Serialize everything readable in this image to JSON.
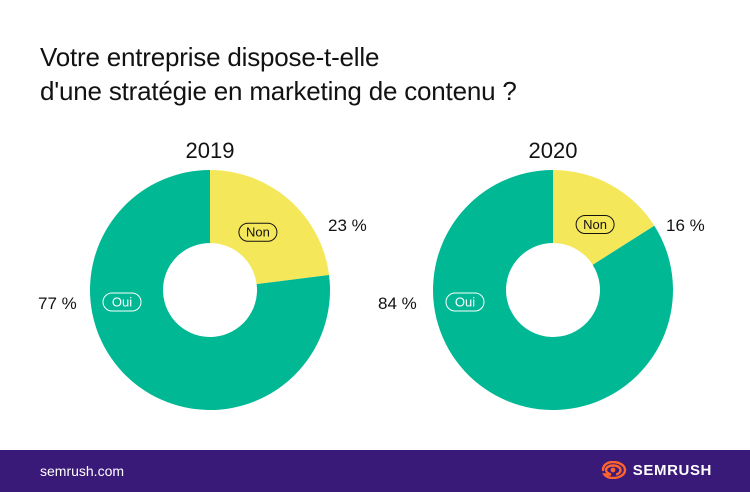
{
  "title_lines": [
    "Votre entreprise dispose-t-elle",
    "d'une stratégie en marketing de contenu ?"
  ],
  "chart_data": [
    {
      "type": "pie",
      "subtitle": "2019",
      "categories": [
        "Non",
        "Oui"
      ],
      "values": [
        23,
        77
      ],
      "value_labels": [
        "23 %",
        "77 %"
      ]
    },
    {
      "type": "pie",
      "subtitle": "2020",
      "categories": [
        "Non",
        "Oui"
      ],
      "values": [
        16,
        84
      ],
      "value_labels": [
        "16 %",
        "84 %"
      ]
    }
  ],
  "colors": {
    "non": "#f5e75a",
    "oui": "#00b894",
    "footer_bg": "#3a1a78",
    "logo_accent": "#ff642d"
  },
  "footer": {
    "site": "semrush.com",
    "brand": "SEMRUSH",
    "logo_icon": "semrush-flame-icon"
  }
}
